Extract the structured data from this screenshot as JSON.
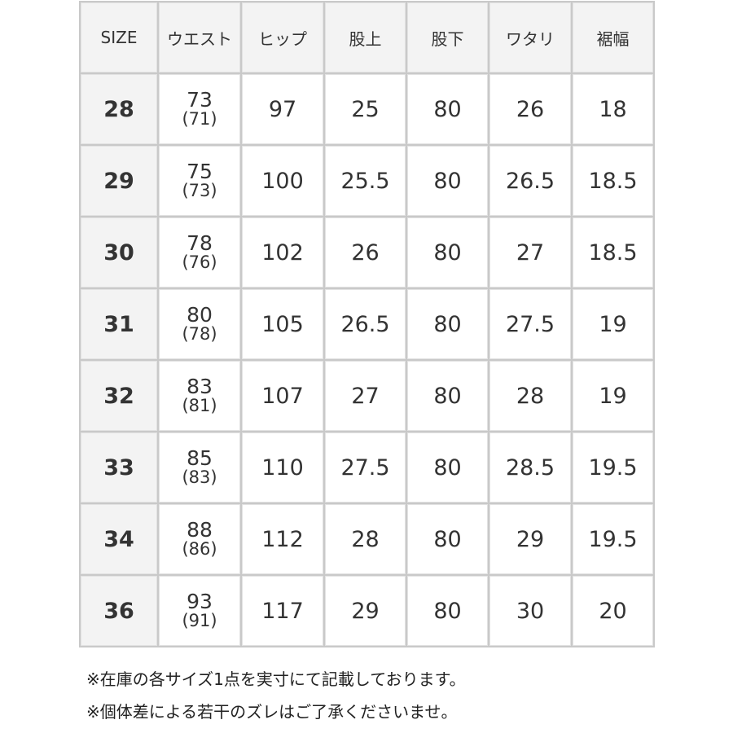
{
  "table": {
    "header": [
      "SIZE",
      "ウエスト",
      "ヒップ",
      "股上",
      "股下",
      "ワタリ",
      "裾幅"
    ],
    "rows": [
      [
        "28",
        [
          "73",
          "(71)"
        ],
        "97",
        "25",
        "80",
        "26",
        "18"
      ],
      [
        "29",
        [
          "75",
          "(73)"
        ],
        "100",
        "25.5",
        "80",
        "26.5",
        "18.5"
      ],
      [
        "30",
        [
          "78",
          "(76)"
        ],
        "102",
        "26",
        "80",
        "27",
        "18.5"
      ],
      [
        "31",
        [
          "80",
          "(78)"
        ],
        "105",
        "26.5",
        "80",
        "27.5",
        "19"
      ],
      [
        "32",
        [
          "83",
          "(81)"
        ],
        "107",
        "27",
        "80",
        "28",
        "19"
      ],
      [
        "33",
        [
          "85",
          "(83)"
        ],
        "110",
        "27.5",
        "80",
        "28.5",
        "19.5"
      ],
      [
        "34",
        [
          "88",
          "(86)"
        ],
        "112",
        "28",
        "80",
        "29",
        "19.5"
      ],
      [
        "36",
        [
          "93",
          "(91)"
        ],
        "117",
        "29",
        "80",
        "30",
        "20"
      ]
    ]
  },
  "notes": [
    "※在庫の各サイズ1点を実寸にて記載しております。",
    "※個体差による若干のズレはご了承くださいませ。"
  ]
}
